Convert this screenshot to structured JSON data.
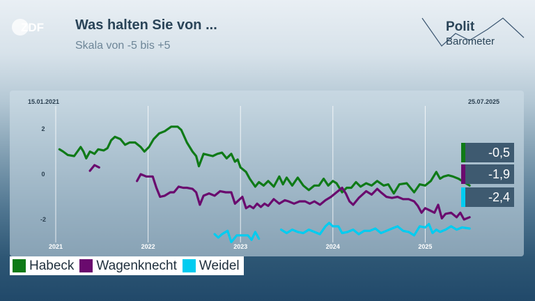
{
  "header": {
    "logo": "ZDF",
    "title": "Was halten Sie von ...",
    "subtitle": "Skala von -5 bis +5",
    "brand_line1": "Polit",
    "brand_line2": "Barometer"
  },
  "chart_data": {
    "type": "line",
    "start_date_label": "15.01.2021",
    "end_date_label": "25.07.2025",
    "x_ticks": [
      "2021",
      "2022",
      "2023",
      "2024",
      "2025"
    ],
    "y_ticks": [
      2,
      0,
      -2
    ],
    "ylim": [
      -3.3,
      3.0
    ],
    "xlim": [
      2021.0,
      2025.6
    ],
    "grid": true,
    "legend_position": "bottom-left",
    "series": [
      {
        "name": "Habeck",
        "color": "#0f7a17",
        "latest_label": "-0,5",
        "segments": [
          [
            [
              2021.04,
              1.1
            ],
            [
              2021.08,
              1.0
            ],
            [
              2021.13,
              0.85
            ],
            [
              2021.2,
              0.8
            ],
            [
              2021.27,
              1.2
            ],
            [
              2021.3,
              1.0
            ],
            [
              2021.33,
              0.7
            ],
            [
              2021.37,
              1.0
            ],
            [
              2021.42,
              0.9
            ],
            [
              2021.46,
              1.1
            ],
            [
              2021.52,
              1.05
            ],
            [
              2021.56,
              1.15
            ],
            [
              2021.6,
              1.5
            ],
            [
              2021.64,
              1.65
            ],
            [
              2021.7,
              1.55
            ],
            [
              2021.75,
              1.3
            ],
            [
              2021.8,
              1.4
            ],
            [
              2021.86,
              1.4
            ],
            [
              2021.92,
              1.2
            ],
            [
              2021.96,
              1.0
            ],
            [
              2022.01,
              1.2
            ],
            [
              2022.06,
              1.55
            ],
            [
              2022.12,
              1.8
            ],
            [
              2022.18,
              1.9
            ],
            [
              2022.25,
              2.1
            ],
            [
              2022.32,
              2.1
            ],
            [
              2022.36,
              1.95
            ],
            [
              2022.42,
              1.4
            ],
            [
              2022.48,
              1.0
            ],
            [
              2022.52,
              0.8
            ],
            [
              2022.55,
              0.35
            ],
            [
              2022.6,
              0.9
            ],
            [
              2022.65,
              0.85
            ],
            [
              2022.7,
              0.8
            ],
            [
              2022.75,
              0.9
            ],
            [
              2022.8,
              0.95
            ],
            [
              2022.85,
              0.7
            ],
            [
              2022.9,
              0.9
            ],
            [
              2022.94,
              0.55
            ],
            [
              2022.97,
              0.65
            ],
            [
              2023.0,
              0.3
            ],
            [
              2023.06,
              0.1
            ],
            [
              2023.1,
              -0.2
            ],
            [
              2023.16,
              -0.55
            ],
            [
              2023.2,
              -0.35
            ],
            [
              2023.25,
              -0.5
            ],
            [
              2023.3,
              -0.3
            ],
            [
              2023.36,
              -0.55
            ],
            [
              2023.42,
              -0.1
            ],
            [
              2023.46,
              -0.45
            ],
            [
              2023.5,
              -0.15
            ],
            [
              2023.56,
              -0.5
            ],
            [
              2023.62,
              -0.15
            ],
            [
              2023.68,
              -0.5
            ],
            [
              2023.74,
              -0.7
            ],
            [
              2023.8,
              -0.5
            ],
            [
              2023.85,
              -0.5
            ],
            [
              2023.9,
              -0.2
            ],
            [
              2023.95,
              -0.5
            ],
            [
              2024.0,
              -0.3
            ],
            [
              2024.04,
              -0.4
            ],
            [
              2024.1,
              -0.8
            ],
            [
              2024.15,
              -0.6
            ],
            [
              2024.2,
              -0.6
            ],
            [
              2024.25,
              -0.35
            ],
            [
              2024.3,
              -0.55
            ],
            [
              2024.36,
              -0.4
            ],
            [
              2024.42,
              -0.5
            ],
            [
              2024.48,
              -0.3
            ],
            [
              2024.55,
              -0.5
            ],
            [
              2024.6,
              -0.45
            ],
            [
              2024.66,
              -0.85
            ],
            [
              2024.72,
              -0.45
            ],
            [
              2024.8,
              -0.4
            ],
            [
              2024.88,
              -0.8
            ],
            [
              2024.94,
              -0.45
            ],
            [
              2025.0,
              -0.5
            ],
            [
              2025.06,
              -0.3
            ],
            [
              2025.12,
              0.1
            ],
            [
              2025.16,
              -0.2
            ],
            [
              2025.2,
              -0.1
            ],
            [
              2025.25,
              -0.05
            ],
            [
              2025.3,
              -0.1
            ],
            [
              2025.36,
              -0.2
            ],
            [
              2025.42,
              -0.35
            ],
            [
              2025.48,
              -0.5
            ]
          ]
        ]
      },
      {
        "name": "Wagenknecht",
        "color": "#6a0a6e",
        "latest_label": "-1,9",
        "segments": [
          [
            [
              2021.37,
              0.15
            ],
            [
              2021.42,
              0.4
            ],
            [
              2021.47,
              0.3
            ]
          ],
          [
            [
              2021.88,
              -0.3
            ],
            [
              2021.92,
              0.0
            ],
            [
              2021.98,
              -0.1
            ],
            [
              2022.05,
              -0.1
            ],
            [
              2022.09,
              -0.6
            ],
            [
              2022.13,
              -1.0
            ],
            [
              2022.18,
              -0.95
            ],
            [
              2022.24,
              -0.8
            ],
            [
              2022.28,
              -0.8
            ],
            [
              2022.33,
              -0.55
            ],
            [
              2022.38,
              -0.6
            ],
            [
              2022.42,
              -0.6
            ],
            [
              2022.48,
              -0.65
            ],
            [
              2022.52,
              -0.8
            ],
            [
              2022.56,
              -1.35
            ],
            [
              2022.6,
              -0.95
            ],
            [
              2022.66,
              -0.85
            ],
            [
              2022.72,
              -0.95
            ],
            [
              2022.78,
              -0.75
            ],
            [
              2022.84,
              -0.8
            ],
            [
              2022.9,
              -0.8
            ],
            [
              2022.94,
              -1.3
            ],
            [
              2022.98,
              -1.15
            ],
            [
              2023.02,
              -1.0
            ],
            [
              2023.06,
              -1.5
            ],
            [
              2023.1,
              -1.4
            ],
            [
              2023.14,
              -1.5
            ],
            [
              2023.18,
              -1.3
            ],
            [
              2023.22,
              -1.45
            ],
            [
              2023.26,
              -1.3
            ],
            [
              2023.3,
              -1.4
            ],
            [
              2023.36,
              -1.1
            ],
            [
              2023.42,
              -1.3
            ],
            [
              2023.48,
              -1.15
            ],
            [
              2023.52,
              -1.2
            ],
            [
              2023.58,
              -1.3
            ],
            [
              2023.64,
              -1.2
            ],
            [
              2023.7,
              -1.2
            ],
            [
              2023.75,
              -1.3
            ],
            [
              2023.8,
              -1.2
            ],
            [
              2023.86,
              -1.35
            ],
            [
              2023.92,
              -1.15
            ],
            [
              2023.98,
              -1.0
            ],
            [
              2024.04,
              -0.8
            ],
            [
              2024.1,
              -0.6
            ],
            [
              2024.14,
              -0.85
            ],
            [
              2024.18,
              -1.2
            ],
            [
              2024.22,
              -1.35
            ],
            [
              2024.28,
              -1.05
            ],
            [
              2024.32,
              -0.9
            ],
            [
              2024.36,
              -0.75
            ],
            [
              2024.42,
              -0.9
            ],
            [
              2024.48,
              -0.65
            ],
            [
              2024.52,
              -0.8
            ],
            [
              2024.58,
              -1.0
            ],
            [
              2024.64,
              -1.05
            ],
            [
              2024.7,
              -1.0
            ],
            [
              2024.76,
              -1.1
            ],
            [
              2024.82,
              -1.1
            ],
            [
              2024.88,
              -1.2
            ],
            [
              2024.92,
              -1.4
            ],
            [
              2024.96,
              -1.7
            ],
            [
              2025.0,
              -1.5
            ],
            [
              2025.05,
              -1.6
            ],
            [
              2025.1,
              -1.7
            ],
            [
              2025.14,
              -1.35
            ],
            [
              2025.18,
              -1.95
            ],
            [
              2025.22,
              -1.75
            ],
            [
              2025.28,
              -1.7
            ],
            [
              2025.34,
              -1.9
            ],
            [
              2025.38,
              -1.7
            ],
            [
              2025.42,
              -2.0
            ],
            [
              2025.48,
              -1.9
            ]
          ]
        ]
      },
      {
        "name": "Weidel",
        "color": "#00ccf0",
        "latest_label": "-2,4",
        "segments": [
          [
            [
              2022.72,
              -2.65
            ],
            [
              2022.76,
              -2.8
            ],
            [
              2022.8,
              -2.65
            ],
            [
              2022.86,
              -2.5
            ],
            [
              2022.9,
              -3.0
            ],
            [
              2022.96,
              -2.7
            ],
            [
              2023.02,
              -2.7
            ],
            [
              2023.08,
              -2.7
            ],
            [
              2023.12,
              -2.9
            ],
            [
              2023.16,
              -2.55
            ],
            [
              2023.2,
              -2.85
            ]
          ],
          [
            [
              2023.44,
              -2.45
            ],
            [
              2023.5,
              -2.6
            ],
            [
              2023.56,
              -2.45
            ],
            [
              2023.62,
              -2.55
            ],
            [
              2023.68,
              -2.6
            ],
            [
              2023.74,
              -2.45
            ],
            [
              2023.8,
              -2.55
            ],
            [
              2023.86,
              -2.65
            ],
            [
              2023.92,
              -2.3
            ],
            [
              2023.96,
              -2.15
            ],
            [
              2024.0,
              -2.3
            ],
            [
              2024.06,
              -2.3
            ],
            [
              2024.1,
              -2.6
            ],
            [
              2024.16,
              -2.55
            ],
            [
              2024.22,
              -2.45
            ],
            [
              2024.28,
              -2.65
            ],
            [
              2024.34,
              -2.5
            ],
            [
              2024.4,
              -2.5
            ],
            [
              2024.46,
              -2.4
            ],
            [
              2024.52,
              -2.6
            ],
            [
              2024.58,
              -2.5
            ],
            [
              2024.64,
              -2.4
            ],
            [
              2024.7,
              -2.3
            ],
            [
              2024.76,
              -2.5
            ],
            [
              2024.82,
              -2.55
            ],
            [
              2024.88,
              -2.7
            ],
            [
              2024.94,
              -2.3
            ],
            [
              2025.0,
              -2.35
            ],
            [
              2025.04,
              -2.2
            ],
            [
              2025.08,
              -2.6
            ],
            [
              2025.12,
              -2.45
            ],
            [
              2025.16,
              -2.55
            ],
            [
              2025.22,
              -2.45
            ],
            [
              2025.28,
              -2.3
            ],
            [
              2025.34,
              -2.45
            ],
            [
              2025.4,
              -2.35
            ],
            [
              2025.48,
              -2.4
            ]
          ]
        ]
      }
    ]
  }
}
